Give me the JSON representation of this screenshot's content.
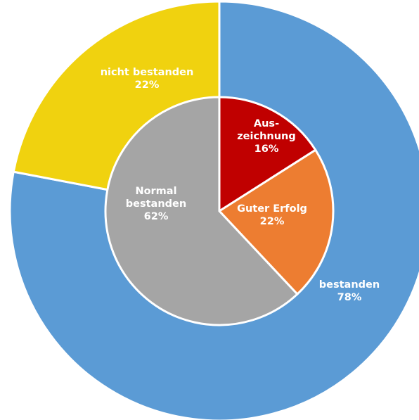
{
  "chart_data": [
    {
      "type": "pie",
      "ring": "outer",
      "slices": [
        {
          "label_lines": [
            "bestanden"
          ],
          "value_label": "78%",
          "value": 78,
          "color": "#5B9BD5"
        },
        {
          "label_lines": [
            "nicht bestanden"
          ],
          "value_label": "22%",
          "value": 22,
          "color": "#F0D20F"
        }
      ]
    },
    {
      "type": "pie",
      "ring": "inner",
      "slices": [
        {
          "label_lines": [
            "Aus-",
            "zeichnung"
          ],
          "value_label": "16%",
          "value": 16,
          "color": "#C00000"
        },
        {
          "label_lines": [
            "Guter Erfolg"
          ],
          "value_label": "22%",
          "value": 22,
          "color": "#ED7D31"
        },
        {
          "label_lines": [
            "Normal",
            "bestanden"
          ],
          "value_label": "62%",
          "value": 62,
          "color": "#A5A5A5"
        }
      ]
    }
  ]
}
